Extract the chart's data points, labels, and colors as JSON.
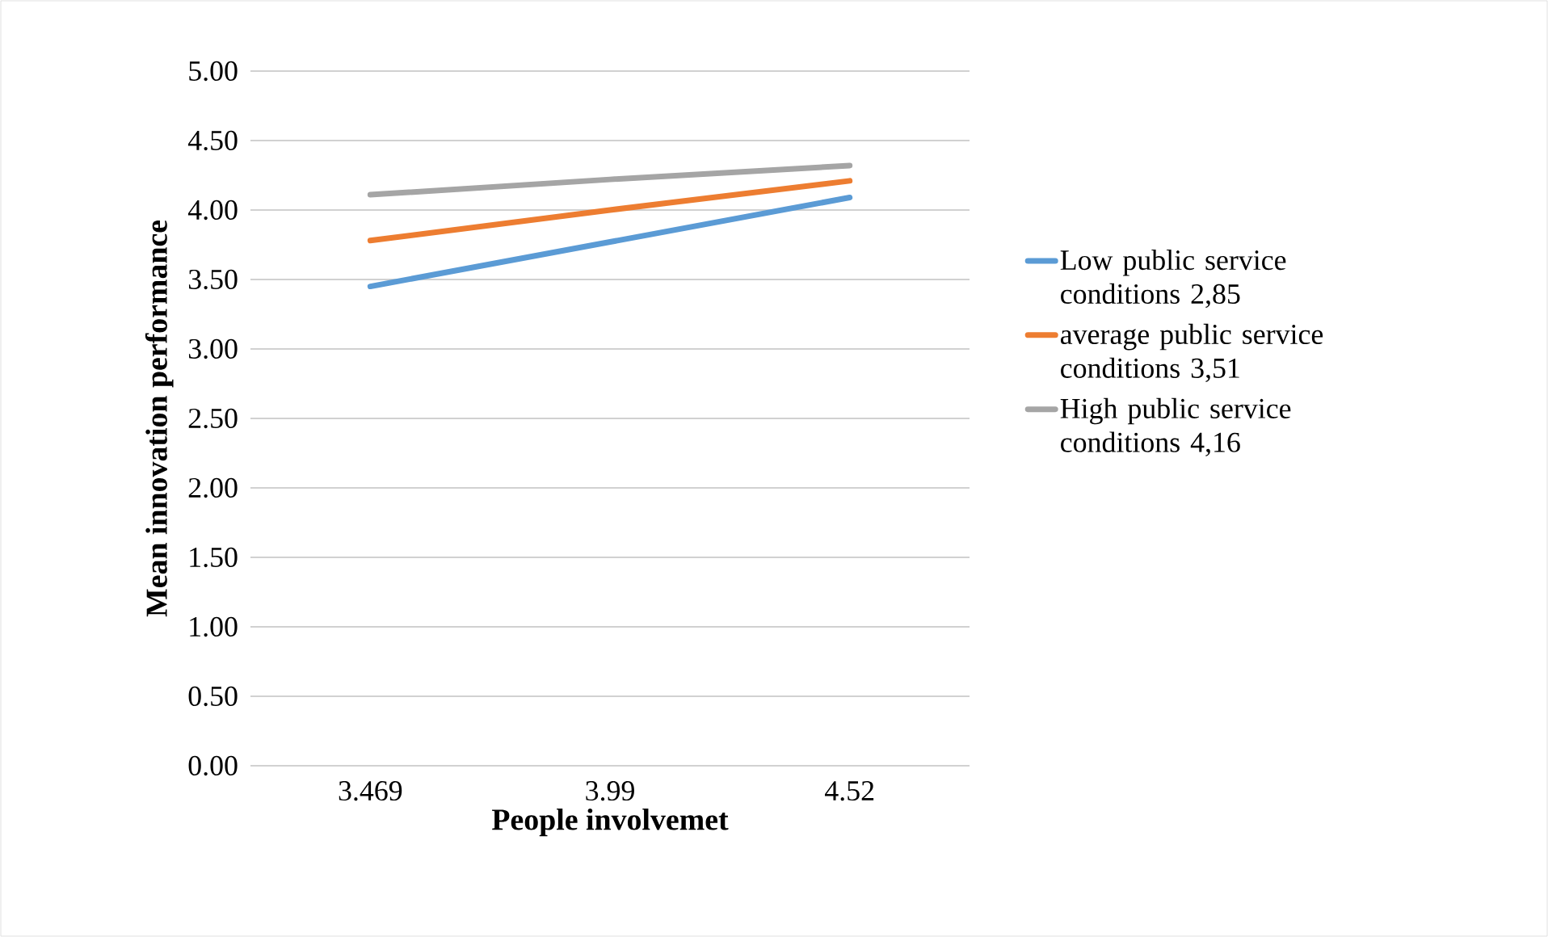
{
  "chart_data": {
    "type": "line",
    "xlabel": "People involvemet",
    "ylabel": "Mean innovation performance",
    "categories": [
      "3.469",
      "3.99",
      "4.52"
    ],
    "series": [
      {
        "name": "Low public service conditions  2,85",
        "color": "#5b9bd5",
        "values": [
          3.45,
          3.77,
          4.09
        ]
      },
      {
        "name": "average public service conditions  3,51",
        "color": "#ed7d31",
        "values": [
          3.78,
          4.0,
          4.21
        ]
      },
      {
        "name": "High public service conditions  4,16",
        "color": "#a5a5a5",
        "values": [
          4.11,
          4.22,
          4.32
        ]
      }
    ],
    "ylim": [
      0,
      5
    ],
    "yticks": [
      {
        "value": 0,
        "label": "0.00"
      },
      {
        "value": 0.5,
        "label": "0.50"
      },
      {
        "value": 1,
        "label": "1.00"
      },
      {
        "value": 1.5,
        "label": "1.50"
      },
      {
        "value": 2,
        "label": "2.00"
      },
      {
        "value": 2.5,
        "label": "2.50"
      },
      {
        "value": 3,
        "label": "3.00"
      },
      {
        "value": 3.5,
        "label": "3.50"
      },
      {
        "value": 4,
        "label": "4.00"
      },
      {
        "value": 4.5,
        "label": "4.50"
      },
      {
        "value": 5,
        "label": "5.00"
      }
    ],
    "grid": "y",
    "legend": "right",
    "marker": "none",
    "line_style": "solid"
  }
}
